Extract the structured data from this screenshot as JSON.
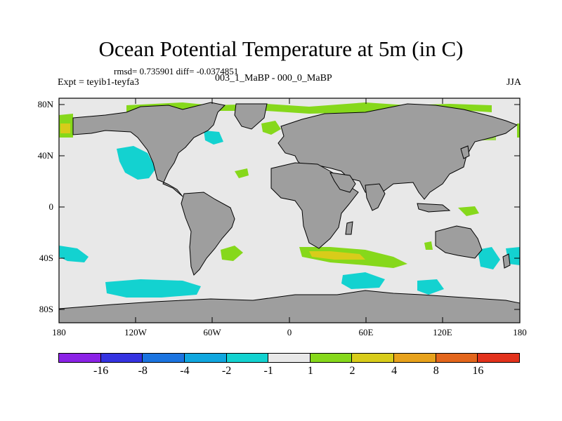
{
  "title": "Ocean Potential Temperature at 5m (in C)",
  "stats": "rmsd= 0.735901  diff= -0.0374851",
  "experiment": "Expt = teyib1-teyfa3",
  "case": "003_1_MaBP - 000_0_MaBP",
  "season": "JJA",
  "y_ticks": [
    "80N",
    "40N",
    "0",
    "40S",
    "80S"
  ],
  "x_ticks": [
    "180",
    "120W",
    "60W",
    "0",
    "60E",
    "120E",
    "180"
  ],
  "colorbar": {
    "colors": [
      "#8b22e6",
      "#3533e1",
      "#1b74e0",
      "#10a7df",
      "#13d2d0",
      "#e8e8e8",
      "#86d81b",
      "#d8cc1a",
      "#e7a21c",
      "#e3661c",
      "#e2321c"
    ],
    "labels": [
      "-16",
      "-8",
      "-4",
      "-2",
      "-1",
      "1",
      "2",
      "4",
      "8",
      "16"
    ]
  },
  "colors": {
    "land": "#9e9e9e",
    "ocean": "#e8e8e8",
    "coast": "#000000"
  }
}
